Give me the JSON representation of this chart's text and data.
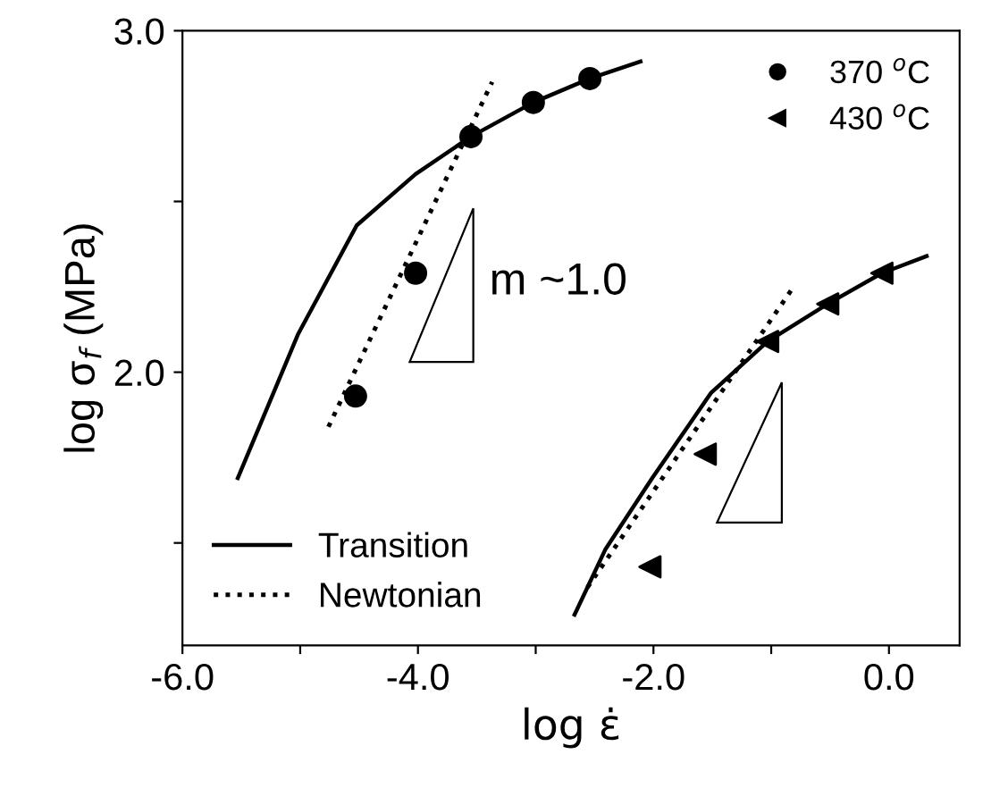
{
  "chart_data": {
    "type": "scatter",
    "xlabel": "log ε̇",
    "ylabel": "log σ$_{f}$ (MPa)",
    "xlim": [
      -6.0,
      0.6
    ],
    "ylim": [
      1.2,
      3.0
    ],
    "xticks": [
      {
        "value": -6,
        "label": "-6.0"
      },
      {
        "value": -5,
        "label": null
      },
      {
        "value": -4,
        "label": "-4.0"
      },
      {
        "value": -3,
        "label": null
      },
      {
        "value": -2,
        "label": "-2.0"
      },
      {
        "value": -1,
        "label": null
      },
      {
        "value": 0,
        "label": "0.0"
      }
    ],
    "yticks": [
      {
        "value": 1.5,
        "label": null
      },
      {
        "value": 2.0,
        "label": "2.0"
      },
      {
        "value": 2.5,
        "label": null
      },
      {
        "value": 3.0,
        "label": "3.0"
      }
    ],
    "grid": false,
    "legend": "top right",
    "annotations": [
      "m ~1.0"
    ],
    "series": [
      {
        "name": "370 $^{o}$C",
        "marker": "circle",
        "color": "#000000",
        "x": [
          -4.53,
          -4.02,
          -3.55,
          -3.02,
          -2.54
        ],
        "values": [
          1.93,
          2.29,
          2.69,
          2.79,
          2.86
        ]
      },
      {
        "name": "430 $^{o}$C",
        "marker": "triangle",
        "color": "#000000",
        "x": [
          -2.03,
          -1.56,
          -1.03,
          -0.52,
          -0.06
        ],
        "values": [
          1.43,
          1.76,
          2.09,
          2.2,
          2.29
        ]
      },
      {
        "name": "Transition",
        "type": "line",
        "line_style": "solid",
        "color": "#000000",
        "x": [
          -5.53,
          -5.02,
          -4.52,
          -4.02,
          -3.55,
          -3.02,
          -2.54,
          -2.11
        ],
        "values": [
          1.69,
          2.11,
          2.43,
          2.58,
          2.69,
          2.79,
          2.86,
          2.91
        ]
      },
      {
        "type": "line",
        "line_style": "solid",
        "color": "#000000",
        "x": [
          -2.67,
          -2.41,
          -2.01,
          -1.51,
          -1.03,
          -0.52,
          -0.06,
          0.32
        ],
        "values": [
          1.29,
          1.48,
          1.69,
          1.94,
          2.09,
          2.2,
          2.29,
          2.34
        ]
      },
      {
        "name": "Newtonian",
        "type": "line",
        "line_style": "dotted",
        "color": "#000000",
        "x": [
          -4.76,
          -3.37
        ],
        "values": [
          1.84,
          2.85
        ]
      },
      {
        "type": "line",
        "line_style": "dotted",
        "color": "#000000",
        "x": [
          -2.56,
          -0.83
        ],
        "values": [
          1.37,
          2.24
        ]
      }
    ]
  }
}
